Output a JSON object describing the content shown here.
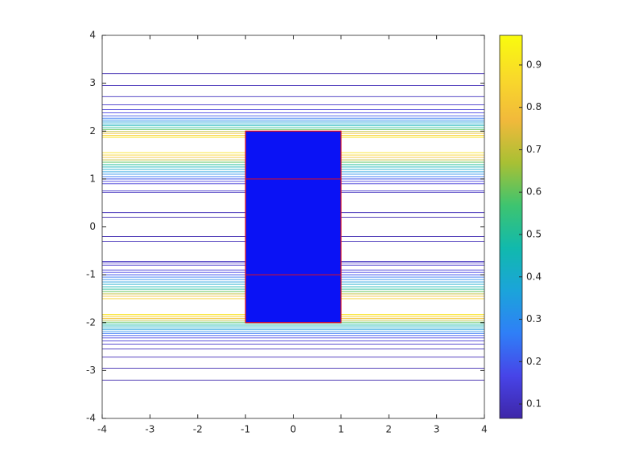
{
  "chart_data": {
    "type": "contour",
    "xlim": [
      -4,
      4
    ],
    "ylim": [
      -4,
      4
    ],
    "xticks": [
      -4,
      -3,
      -2,
      -1,
      0,
      1,
      2,
      3,
      4
    ],
    "yticks": [
      -4,
      -3,
      -2,
      -1,
      0,
      1,
      2,
      3,
      4
    ],
    "contours": {
      "y": [
        3.2,
        2.95,
        2.72,
        2.55,
        2.45,
        2.38,
        2.32,
        2.27,
        2.23,
        2.19,
        2.15,
        2.11,
        2.07,
        2.03,
        1.99,
        1.95,
        1.91,
        1.87,
        1.55,
        1.5,
        1.45,
        1.4,
        1.35,
        1.3,
        1.25,
        1.2,
        1.15,
        1.1,
        1.05,
        1.0,
        0.95,
        0.9,
        0.75,
        0.72,
        0.3,
        0.2,
        -0.2,
        -0.3,
        -0.72,
        -0.75,
        -0.8,
        -0.9,
        -0.95,
        -1.0,
        -1.05,
        -1.1,
        -1.15,
        -1.2,
        -1.25,
        -1.3,
        -1.35,
        -1.4,
        -1.45,
        -1.5,
        -1.83,
        -1.87,
        -1.91,
        -1.95,
        -1.99,
        -2.03,
        -2.07,
        -2.11,
        -2.15,
        -2.19,
        -2.23,
        -2.27,
        -2.32,
        -2.38,
        -2.45,
        -2.55,
        -2.72,
        -2.95,
        -3.2
      ],
      "level": [
        0.08,
        0.09,
        0.1,
        0.12,
        0.14,
        0.16,
        0.2,
        0.25,
        0.3,
        0.35,
        0.4,
        0.45,
        0.5,
        0.6,
        0.7,
        0.8,
        0.85,
        0.9,
        0.9,
        0.85,
        0.8,
        0.7,
        0.6,
        0.5,
        0.45,
        0.4,
        0.35,
        0.3,
        0.25,
        0.2,
        0.16,
        0.14,
        0.12,
        0.1,
        0.09,
        0.08,
        0.08,
        0.09,
        0.1,
        0.11,
        0.12,
        0.14,
        0.16,
        0.2,
        0.25,
        0.3,
        0.35,
        0.4,
        0.45,
        0.5,
        0.6,
        0.7,
        0.8,
        0.85,
        0.9,
        0.85,
        0.8,
        0.7,
        0.6,
        0.5,
        0.45,
        0.4,
        0.35,
        0.3,
        0.25,
        0.2,
        0.16,
        0.14,
        0.12,
        0.1,
        0.09,
        0.08,
        0.07
      ]
    },
    "rect": {
      "x": [
        -1,
        1
      ],
      "y": [
        -2,
        2
      ],
      "color": "#0a12f5",
      "edge_color": "#e0101a"
    },
    "mesh_lines_y": [
      -1,
      1
    ],
    "colormap": [
      "#3e26a8",
      "#4744e8",
      "#2f7ff7",
      "#1ba4da",
      "#11b9ad",
      "#3dc470",
      "#a8c034",
      "#f1b93b",
      "#f9d92a",
      "#f9fb0e"
    ],
    "clim": [
      0.066,
      0.97
    ],
    "cticks": [
      0.1,
      0.2,
      0.3,
      0.4,
      0.5,
      0.6,
      0.7,
      0.8,
      0.9
    ]
  }
}
